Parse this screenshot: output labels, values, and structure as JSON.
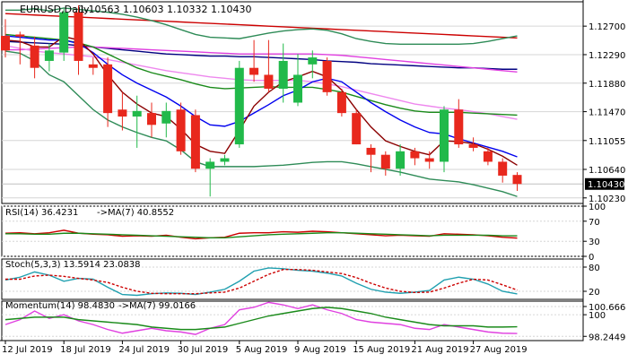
{
  "colors": {
    "bull": "#21b94a",
    "bear": "#e8281d",
    "grid": "#d6d6d6",
    "axis": "#555555",
    "price_box_bg": "#000000",
    "price_box_text": "#ffffff",
    "current_line": "#c0c0c0"
  },
  "chart_data": [
    {
      "type": "candlestick",
      "panel": "main",
      "title": "EURUSD,Daily",
      "ohlc_text": "1.10563 1.10603 1.10332 1.10430",
      "current_price_label": "1.10430",
      "ylim": [
        1.1015,
        1.1305
      ],
      "y_ticks": [
        "1.12700",
        "1.12290",
        "1.11880",
        "1.11470",
        "1.11055",
        "1.10640",
        "1.10230"
      ],
      "x_ticks": [
        {
          "index": 0,
          "label": "12 Jul 2019"
        },
        {
          "index": 4,
          "label": "18 Jul 2019"
        },
        {
          "index": 8,
          "label": "24 Jul 2019"
        },
        {
          "index": 12,
          "label": "30 Jul 2019"
        },
        {
          "index": 16,
          "label": "5 Aug 2019"
        },
        {
          "index": 20,
          "label": "9 Aug 2019"
        },
        {
          "index": 24,
          "label": "15 Aug 2019"
        },
        {
          "index": 28,
          "label": "21 Aug 2019"
        },
        {
          "index": 32,
          "label": "27 Aug 2019"
        }
      ],
      "candles": [
        [
          1.1256,
          1.128,
          1.1225,
          1.1235
        ],
        [
          1.1258,
          1.1262,
          1.1215,
          1.1255
        ],
        [
          1.1242,
          1.1255,
          1.1195,
          1.121
        ],
        [
          1.122,
          1.1245,
          1.1205,
          1.1235
        ],
        [
          1.1232,
          1.1295,
          1.122,
          1.129
        ],
        [
          1.129,
          1.13,
          1.12,
          1.122
        ],
        [
          1.1215,
          1.1225,
          1.12,
          1.121
        ],
        [
          1.1215,
          1.1225,
          1.1125,
          1.1145
        ],
        [
          1.115,
          1.1175,
          1.112,
          1.114
        ],
        [
          1.114,
          1.117,
          1.1095,
          1.1148
        ],
        [
          1.1145,
          1.116,
          1.111,
          1.1128
        ],
        [
          1.113,
          1.116,
          1.111,
          1.1148
        ],
        [
          1.115,
          1.116,
          1.1085,
          1.109
        ],
        [
          1.1142,
          1.115,
          1.106,
          1.1065
        ],
        [
          1.1065,
          1.108,
          1.1025,
          1.1075
        ],
        [
          1.1075,
          1.1085,
          1.107,
          1.108
        ],
        [
          1.11,
          1.122,
          1.1095,
          1.121
        ],
        [
          1.121,
          1.125,
          1.119,
          1.12
        ],
        [
          1.12,
          1.125,
          1.1175,
          1.118
        ],
        [
          1.118,
          1.1245,
          1.116,
          1.122
        ],
        [
          1.116,
          1.123,
          1.1155,
          1.12
        ],
        [
          1.1215,
          1.1235,
          1.1195,
          1.1225
        ],
        [
          1.122,
          1.1225,
          1.117,
          1.1175
        ],
        [
          1.1175,
          1.118,
          1.114,
          1.1145
        ],
        [
          1.1145,
          1.115,
          1.11,
          1.11
        ],
        [
          1.1095,
          1.11,
          1.106,
          1.1085
        ],
        [
          1.1085,
          1.109,
          1.1055,
          1.1065
        ],
        [
          1.1065,
          1.11,
          1.1055,
          1.109
        ],
        [
          1.109,
          1.1095,
          1.107,
          1.108
        ],
        [
          1.108,
          1.109,
          1.1065,
          1.1075
        ],
        [
          1.1075,
          1.1155,
          1.106,
          1.115
        ],
        [
          1.115,
          1.1165,
          1.1095,
          1.11
        ],
        [
          1.11,
          1.111,
          1.109,
          1.1095
        ],
        [
          1.109,
          1.1095,
          1.107,
          1.1075
        ],
        [
          1.1075,
          1.108,
          1.1045,
          1.1055
        ],
        [
          1.1056,
          1.106,
          1.1033,
          1.1043
        ]
      ],
      "series": [
        {
          "color": "#cc0000",
          "values": [
            1.1288,
            1.1287,
            1.1286,
            1.1285,
            1.1284,
            1.1283,
            1.1282,
            1.1281,
            1.128,
            1.1279,
            1.1278,
            1.1277,
            1.1276,
            1.1275,
            1.1274,
            1.1273,
            1.1272,
            1.1271,
            1.127,
            1.1269,
            1.1268,
            1.1267,
            1.1266,
            1.1265,
            1.1264,
            1.1263,
            1.1262,
            1.1261,
            1.126,
            1.1259,
            1.1258,
            1.1257,
            1.1256,
            1.1255,
            1.1254,
            1.1253
          ]
        },
        {
          "color": "#000080",
          "values": [
            1.1248,
            1.1247,
            1.1246,
            1.1245,
            1.1244,
            1.1242,
            1.124,
            1.1238,
            1.1236,
            1.1234,
            1.1232,
            1.123,
            1.1229,
            1.1228,
            1.1227,
            1.1227,
            1.1226,
            1.1226,
            1.1225,
            1.1224,
            1.1223,
            1.1222,
            1.122,
            1.1219,
            1.1218,
            1.1216,
            1.1215,
            1.1214,
            1.1213,
            1.1212,
            1.1211,
            1.121,
            1.121,
            1.1209,
            1.1208,
            1.1208
          ]
        },
        {
          "color": "#e040e0",
          "values": [
            1.1236,
            1.1236,
            1.1237,
            1.1238,
            1.1239,
            1.124,
            1.124,
            1.1239,
            1.1238,
            1.1237,
            1.1236,
            1.1235,
            1.1234,
            1.1233,
            1.1232,
            1.1231,
            1.123,
            1.123,
            1.123,
            1.123,
            1.123,
            1.123,
            1.1229,
            1.1228,
            1.1226,
            1.1224,
            1.1222,
            1.122,
            1.1218,
            1.1216,
            1.1214,
            1.1212,
            1.121,
            1.1208,
            1.1206,
            1.1204
          ]
        },
        {
          "color": "#ee88ee",
          "values": [
            1.1242,
            1.1238,
            1.1234,
            1.1232,
            1.123,
            1.1228,
            1.1226,
            1.1222,
            1.1218,
            1.1214,
            1.121,
            1.1206,
            1.1203,
            1.12,
            1.1197,
            1.1195,
            1.1193,
            1.1192,
            1.1192,
            1.1192,
            1.1192,
            1.119,
            1.1187,
            1.1183,
            1.1178,
            1.1173,
            1.1168,
            1.1163,
            1.1158,
            1.1155,
            1.1152,
            1.115,
            1.1147,
            1.1144,
            1.114,
            1.1136
          ]
        },
        {
          "color": "#1a8a1a",
          "values": [
            1.1258,
            1.1256,
            1.1254,
            1.1252,
            1.125,
            1.1246,
            1.124,
            1.123,
            1.122,
            1.121,
            1.1203,
            1.1198,
            1.1193,
            1.1187,
            1.1182,
            1.118,
            1.1181,
            1.1182,
            1.1183,
            1.1182,
            1.1182,
            1.1182,
            1.1179,
            1.1175,
            1.1169,
            1.1163,
            1.1157,
            1.1152,
            1.1148,
            1.1146,
            1.1146,
            1.1146,
            1.1145,
            1.1144,
            1.1143,
            1.1142
          ]
        },
        {
          "color": "#0000ee",
          "values": [
            1.1256,
            1.1254,
            1.1252,
            1.125,
            1.125,
            1.1245,
            1.1232,
            1.1215,
            1.12,
            1.1188,
            1.1178,
            1.1168,
            1.1155,
            1.114,
            1.1128,
            1.1126,
            1.1133,
            1.1145,
            1.1157,
            1.117,
            1.1178,
            1.119,
            1.1195,
            1.119,
            1.1175,
            1.116,
            1.1147,
            1.1135,
            1.1125,
            1.1117,
            1.1115,
            1.1108,
            1.1102,
            1.1096,
            1.109,
            1.1082
          ]
        },
        {
          "color": "#8b0000",
          "values": [
            1.125,
            1.1248,
            1.124,
            1.124,
            1.1255,
            1.125,
            1.123,
            1.12,
            1.1175,
            1.1158,
            1.1145,
            1.114,
            1.1122,
            1.11,
            1.109,
            1.1087,
            1.112,
            1.1155,
            1.1175,
            1.119,
            1.1197,
            1.1205,
            1.1197,
            1.1178,
            1.115,
            1.1125,
            1.1105,
            1.1097,
            1.109,
            1.1085,
            1.1105,
            1.1104,
            1.1101,
            1.1093,
            1.1083,
            1.107
          ]
        },
        {
          "color": "#2e8b57",
          "values": [
            1.1293,
            1.1293,
            1.1295,
            1.1292,
            1.1296,
            1.1294,
            1.1292,
            1.129,
            1.1287,
            1.1283,
            1.1278,
            1.1272,
            1.1265,
            1.1258,
            1.1254,
            1.1253,
            1.1252,
            1.1256,
            1.126,
            1.1263,
            1.1265,
            1.1266,
            1.1264,
            1.1259,
            1.1252,
            1.1248,
            1.1245,
            1.1244,
            1.1244,
            1.1244,
            1.1244,
            1.1244,
            1.1245,
            1.1248,
            1.1252,
            1.1256
          ]
        },
        {
          "color": "#2e8b57",
          "values": [
            1.1234,
            1.1231,
            1.122,
            1.12,
            1.119,
            1.117,
            1.115,
            1.1135,
            1.1125,
            1.1117,
            1.111,
            1.1105,
            1.1092,
            1.1075,
            1.1068,
            1.1068,
            1.1068,
            1.1068,
            1.1069,
            1.107,
            1.1072,
            1.1074,
            1.1075,
            1.1075,
            1.1072,
            1.1068,
            1.1064,
            1.106,
            1.1055,
            1.105,
            1.1048,
            1.1046,
            1.1042,
            1.1037,
            1.1032,
            1.1025
          ]
        }
      ]
    },
    {
      "type": "line",
      "panel": "rsi",
      "label": "RSI(14) 36.4231",
      "ma_label": "->MA(7) 40.8552",
      "ylim": [
        0,
        100
      ],
      "y_ticks": [
        "100",
        "70",
        "30",
        "0"
      ],
      "series": [
        {
          "color": "#cc0000",
          "values": [
            46,
            47,
            45,
            47,
            52,
            46,
            44,
            43,
            40,
            41,
            40,
            42,
            38,
            35,
            37,
            38,
            46,
            47,
            47,
            49,
            48,
            50,
            49,
            47,
            45,
            43,
            41,
            42,
            41,
            40,
            45,
            44,
            43,
            41,
            38,
            36.4
          ]
        },
        {
          "color": "#1a8a1a",
          "values": [
            45,
            45,
            44,
            44,
            46,
            46,
            45,
            44,
            43,
            42,
            41,
            40,
            39,
            38,
            37,
            37,
            39,
            41,
            43,
            44,
            45,
            46,
            47,
            47,
            46,
            45,
            44,
            43,
            42,
            41,
            42,
            42,
            42,
            42,
            41,
            40.9
          ]
        }
      ]
    },
    {
      "type": "line",
      "panel": "stoch",
      "label": "Stoch(5,3,3) 13.5914 23.0838",
      "ylim": [
        0,
        100
      ],
      "y_ticks": [
        "80",
        "20"
      ],
      "series": [
        {
          "color": "#20a0b0",
          "values": [
            48,
            55,
            68,
            60,
            45,
            52,
            50,
            30,
            12,
            10,
            14,
            16,
            15,
            12,
            18,
            25,
            45,
            70,
            78,
            76,
            72,
            70,
            65,
            58,
            40,
            25,
            18,
            15,
            18,
            22,
            48,
            55,
            50,
            38,
            20,
            13.6
          ]
        },
        {
          "color": "#cc0000",
          "dash": true,
          "values": [
            50,
            50,
            58,
            60,
            57,
            52,
            48,
            42,
            30,
            20,
            15,
            14,
            14,
            14,
            16,
            18,
            28,
            45,
            62,
            74,
            74,
            72,
            68,
            64,
            54,
            40,
            28,
            20,
            17,
            18,
            28,
            40,
            50,
            48,
            36,
            23.1
          ]
        }
      ]
    },
    {
      "type": "line",
      "panel": "momentum",
      "label": "Momentum(14) 98.4830",
      "ma_label": "->MA(7) 99.0166",
      "ylim": [
        97.9,
        101.1
      ],
      "y_ticks": [
        "100.666",
        "100",
        "98.2449"
      ],
      "series": [
        {
          "color": "#e040e0",
          "values": [
            99.2,
            99.6,
            100.3,
            99.7,
            100.0,
            99.5,
            99.2,
            98.8,
            98.5,
            98.7,
            98.9,
            98.7,
            98.6,
            98.4,
            98.9,
            99.2,
            100.4,
            100.6,
            101.0,
            100.8,
            100.5,
            100.8,
            100.4,
            100.1,
            99.6,
            99.4,
            99.3,
            99.2,
            98.9,
            98.8,
            99.2,
            99.0,
            98.8,
            98.6,
            98.5,
            98.48
          ]
        },
        {
          "color": "#1a8a1a",
          "values": [
            99.6,
            99.7,
            99.8,
            99.8,
            99.8,
            99.6,
            99.5,
            99.4,
            99.3,
            99.2,
            99.0,
            98.9,
            98.8,
            98.8,
            98.9,
            99.0,
            99.3,
            99.6,
            99.9,
            100.1,
            100.3,
            100.5,
            100.6,
            100.5,
            100.3,
            100.1,
            99.8,
            99.6,
            99.4,
            99.2,
            99.1,
            99.1,
            99.1,
            99.0,
            99.0,
            99.02
          ]
        }
      ]
    }
  ]
}
